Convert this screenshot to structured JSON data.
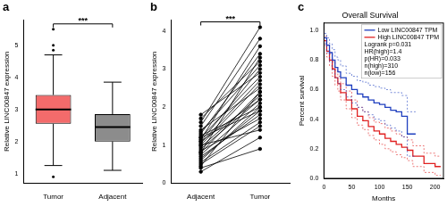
{
  "chart_data": [
    {
      "type": "box",
      "label": "a",
      "ylabel": "Relative LINC00847 expression",
      "categories": [
        "Tumor",
        "Adjacent"
      ],
      "colors": [
        "#f36b6b",
        "#8c8c8c"
      ],
      "boxes": [
        {
          "whisker_low": 1.25,
          "q1": 2.55,
          "median": 3.0,
          "q3": 3.45,
          "whisker_high": 4.7,
          "outliers": [
            0.9,
            4.85,
            5.0,
            5.5
          ]
        },
        {
          "whisker_low": 1.1,
          "q1": 2.0,
          "median": 2.45,
          "q3": 2.85,
          "whisker_high": 3.85,
          "outliers": []
        }
      ],
      "annotation": "***",
      "ylim": [
        0.7,
        5.8
      ],
      "yticks": [
        1,
        2,
        3,
        4,
        5
      ],
      "grid": false
    },
    {
      "type": "paired",
      "label": "b",
      "ylabel": "Relative LINC00847 expression",
      "categories": [
        "Adjacent",
        "Tumor"
      ],
      "color": "#000000",
      "pairs": [
        [
          0.3,
          1.2
        ],
        [
          0.5,
          1.5
        ],
        [
          0.6,
          2.0
        ],
        [
          0.7,
          1.8
        ],
        [
          0.8,
          2.4
        ],
        [
          0.9,
          2.2
        ],
        [
          1.0,
          2.6
        ],
        [
          1.1,
          3.0
        ],
        [
          1.2,
          2.8
        ],
        [
          1.3,
          3.4
        ],
        [
          1.4,
          2.5
        ],
        [
          1.5,
          3.8
        ],
        [
          1.6,
          4.1
        ],
        [
          1.7,
          3.2
        ],
        [
          1.8,
          2.9
        ],
        [
          0.4,
          0.9
        ],
        [
          0.55,
          1.6
        ],
        [
          0.65,
          1.9
        ],
        [
          0.75,
          2.1
        ],
        [
          0.85,
          1.7
        ],
        [
          0.95,
          2.3
        ],
        [
          1.05,
          2.7
        ],
        [
          1.15,
          3.6
        ],
        [
          1.25,
          2.0
        ],
        [
          1.35,
          3.1
        ],
        [
          0.45,
          2.4
        ],
        [
          1.0,
          1.4
        ],
        [
          1.2,
          1.9
        ],
        [
          0.8,
          3.3
        ],
        [
          1.1,
          2.2
        ]
      ],
      "annotation": "***",
      "ylim": [
        0,
        4.3
      ],
      "yticks": [
        0,
        1,
        2,
        3,
        4
      ],
      "grid": false
    },
    {
      "type": "line",
      "label": "c",
      "title": "Overall Survival",
      "xlabel": "Months",
      "ylabel": "Percent survival",
      "legend": "upper right",
      "series": [
        {
          "name": "Low LINC00847 TPM",
          "color": "#1f3fbf",
          "x": [
            0,
            5,
            10,
            15,
            20,
            25,
            30,
            40,
            50,
            60,
            70,
            80,
            90,
            100,
            110,
            120,
            130,
            140,
            150,
            160,
            165
          ],
          "values": [
            1.0,
            0.95,
            0.9,
            0.85,
            0.8,
            0.75,
            0.72,
            0.68,
            0.63,
            0.6,
            0.57,
            0.55,
            0.53,
            0.51,
            0.5,
            0.48,
            0.46,
            0.45,
            0.42,
            0.3,
            0.3
          ],
          "ci_lower": [
            1.0,
            0.91,
            0.85,
            0.79,
            0.73,
            0.68,
            0.64,
            0.6,
            0.55,
            0.51,
            0.48,
            0.45,
            0.43,
            0.4,
            0.39,
            0.36,
            0.34,
            0.32,
            0.28,
            0.15,
            0.15
          ],
          "ci_upper": [
            1.0,
            0.98,
            0.95,
            0.91,
            0.87,
            0.82,
            0.8,
            0.76,
            0.71,
            0.69,
            0.66,
            0.65,
            0.63,
            0.62,
            0.61,
            0.6,
            0.58,
            0.58,
            0.56,
            0.45,
            0.45
          ]
        },
        {
          "name": "High LINC00847 TPM",
          "color": "#e02020",
          "x": [
            0,
            5,
            10,
            15,
            20,
            25,
            30,
            40,
            50,
            60,
            70,
            80,
            90,
            100,
            110,
            120,
            130,
            140,
            150,
            160,
            180,
            200,
            210
          ],
          "values": [
            1.0,
            0.93,
            0.86,
            0.8,
            0.74,
            0.68,
            0.64,
            0.58,
            0.53,
            0.47,
            0.42,
            0.39,
            0.35,
            0.32,
            0.3,
            0.27,
            0.25,
            0.23,
            0.21,
            0.19,
            0.15,
            0.1,
            0.08
          ],
          "ci_lower": [
            1.0,
            0.9,
            0.82,
            0.76,
            0.69,
            0.63,
            0.59,
            0.53,
            0.47,
            0.41,
            0.36,
            0.33,
            0.29,
            0.26,
            0.23,
            0.2,
            0.18,
            0.16,
            0.14,
            0.12,
            0.08,
            0.04,
            0.02
          ],
          "ci_upper": [
            1.0,
            0.96,
            0.9,
            0.84,
            0.79,
            0.73,
            0.69,
            0.64,
            0.59,
            0.53,
            0.48,
            0.45,
            0.41,
            0.38,
            0.37,
            0.34,
            0.32,
            0.3,
            0.28,
            0.26,
            0.22,
            0.17,
            0.15
          ]
        }
      ],
      "annotations": [
        "Logrank p=0.031",
        "HR(high)=1.4",
        "p(HR)=0.033",
        "n(high)=310",
        "n(low)=156"
      ],
      "xlim": [
        0,
        215
      ],
      "xticks": [
        0,
        50,
        100,
        150,
        200
      ],
      "ylim": [
        0,
        1.05
      ],
      "yticks": [
        {
          "value": 0,
          "label": "0.0"
        },
        0.2,
        0.4,
        0.6,
        0.8,
        {
          "value": 1,
          "label": "1.0"
        }
      ],
      "grid": false
    }
  ]
}
